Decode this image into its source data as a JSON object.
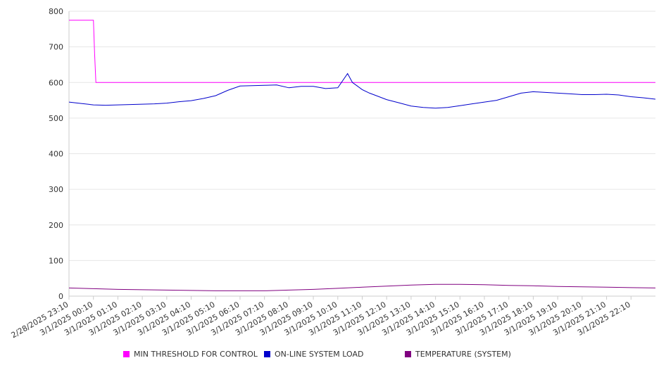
{
  "chart_data": {
    "type": "line",
    "title": "",
    "xlabel": "",
    "ylabel": "",
    "ylim": [
      0,
      800
    ],
    "y_ticks": [
      "0",
      "100",
      "200",
      "300",
      "400",
      "500",
      "600",
      "700",
      "800"
    ],
    "x_tick_labels": [
      "2/28/2025 23:10",
      "3/1/2025 00:10",
      "3/1/2025 01:10",
      "3/1/2025 02:10",
      "3/1/2025 03:10",
      "3/1/2025 04:10",
      "3/1/2025 05:10",
      "3/1/2025 06:10",
      "3/1/2025 07:10",
      "3/1/2025 08:10",
      "3/1/2025 09:10",
      "3/1/2025 10:10",
      "3/1/2025 11:10",
      "3/1/2025 12:10",
      "3/1/2025 13:10",
      "3/1/2025 14:10",
      "3/1/2025 15:10",
      "3/1/2025 16:10",
      "3/1/2025 17:10",
      "3/1/2025 18:10",
      "3/1/2025 19:10",
      "3/1/2025 20:10",
      "3/1/2025 21:10",
      "3/1/2025 22:10"
    ],
    "x_range_hours": [
      0,
      24
    ],
    "grid": "horizontal",
    "legend_position": "bottom",
    "series": [
      {
        "name": "MIN THRESHOLD FOR CONTROL",
        "color": "#ff00ff",
        "x_hours": [
          0,
          1.0,
          1.05,
          1.1,
          24
        ],
        "values": [
          775,
          775,
          680,
          600,
          600
        ]
      },
      {
        "name": "ON-LINE SYSTEM LOAD",
        "color": "#0000cc",
        "x_hours": [
          0,
          0.5,
          1.0,
          1.5,
          2.0,
          2.5,
          3.0,
          3.5,
          4.0,
          4.5,
          5.0,
          5.5,
          6.0,
          6.5,
          7.0,
          7.5,
          8.0,
          8.5,
          9.0,
          9.5,
          10.0,
          10.5,
          11.0,
          11.4,
          11.6,
          11.8,
          12.0,
          12.3,
          12.5,
          13.0,
          13.5,
          14.0,
          14.5,
          15.0,
          15.5,
          16.0,
          16.5,
          17.0,
          17.5,
          18.0,
          18.5,
          19.0,
          19.5,
          20.0,
          20.5,
          21.0,
          21.5,
          22.0,
          22.5,
          23.0,
          23.5,
          24.0
        ],
        "values": [
          545,
          541,
          537,
          536,
          537,
          538,
          539,
          540,
          542,
          546,
          549,
          555,
          563,
          578,
          590,
          591,
          592,
          593,
          585,
          589,
          589,
          583,
          585,
          625,
          600,
          590,
          580,
          570,
          565,
          552,
          543,
          534,
          530,
          528,
          530,
          535,
          540,
          545,
          550,
          560,
          570,
          574,
          572,
          570,
          568,
          566,
          566,
          567,
          565,
          560,
          557,
          553
        ]
      },
      {
        "name": "TEMPERATURE (SYSTEM)",
        "color": "#800080",
        "x_hours": [
          0,
          1,
          2,
          3,
          4,
          5,
          6,
          7,
          8,
          9,
          10,
          11,
          12,
          13,
          14,
          15,
          16,
          17,
          18,
          19,
          20,
          21,
          22,
          23,
          24
        ],
        "values": [
          23,
          21,
          19,
          18,
          17,
          16,
          15,
          15,
          15,
          17,
          19,
          22,
          25,
          28,
          31,
          33,
          33,
          32,
          30,
          29,
          27,
          26,
          25,
          24,
          23
        ]
      }
    ]
  }
}
